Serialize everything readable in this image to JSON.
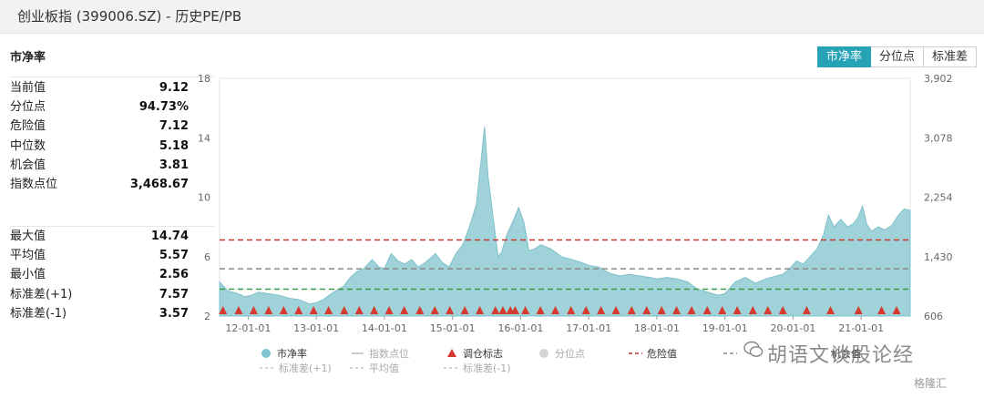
{
  "window": {
    "title": "创业板指 (399006.SZ) - 历史PE/PB"
  },
  "panel_title": "市净率",
  "tabs": [
    {
      "label": "市净率",
      "active": true
    },
    {
      "label": "分位点",
      "active": false
    },
    {
      "label": "标准差",
      "active": false
    }
  ],
  "stats_current": [
    {
      "label": "当前值",
      "value": "9.12"
    },
    {
      "label": "分位点",
      "value": "94.73%"
    },
    {
      "label": "危险值",
      "value": "7.12"
    },
    {
      "label": "中位数",
      "value": "5.18"
    },
    {
      "label": "机会值",
      "value": "3.81"
    },
    {
      "label": "指数点位",
      "value": "3,468.67"
    }
  ],
  "stats_history": [
    {
      "label": "最大值",
      "value": "14.74"
    },
    {
      "label": "平均值",
      "value": "5.57"
    },
    {
      "label": "最小值",
      "value": "2.56"
    },
    {
      "label": "标准差(+1)",
      "value": "7.57"
    },
    {
      "label": "标准差(-1)",
      "value": "3.57"
    }
  ],
  "watermark": "胡语文谈股论经",
  "source_badge": "格隆汇",
  "colors": {
    "area": "#9fd2d9",
    "area_stroke": "#7fc0c9",
    "danger": "#c0392b",
    "median": "#888888",
    "opportunity": "#3b9a4c",
    "marker": "#d63a2f",
    "accent": "#27a3b6"
  },
  "chart_data": {
    "type": "area",
    "y_left": {
      "ticks": [
        "2",
        "6",
        "10",
        "14",
        "18"
      ],
      "range": [
        2,
        18
      ]
    },
    "y_right": {
      "ticks": [
        "606",
        "1,430",
        "2,254",
        "3,078",
        "3,902"
      ],
      "range": [
        606,
        3902
      ]
    },
    "x_ticks": [
      "12-01-01",
      "13-01-01",
      "14-01-01",
      "15-01-01",
      "16-01-01",
      "17-01-01",
      "18-01-01",
      "19-01-01",
      "20-01-01",
      "21-01-01"
    ],
    "x_range": [
      2011.58,
      2021.72
    ],
    "series": [
      {
        "name": "市净率",
        "points": [
          [
            2011.58,
            4.3
          ],
          [
            2011.7,
            3.7
          ],
          [
            2011.85,
            3.5
          ],
          [
            2011.95,
            3.3
          ],
          [
            2012.05,
            3.4
          ],
          [
            2012.15,
            3.6
          ],
          [
            2012.3,
            3.5
          ],
          [
            2012.45,
            3.4
          ],
          [
            2012.6,
            3.2
          ],
          [
            2012.75,
            3.1
          ],
          [
            2012.9,
            2.8
          ],
          [
            2013.0,
            2.9
          ],
          [
            2013.1,
            3.1
          ],
          [
            2013.25,
            3.6
          ],
          [
            2013.4,
            4.0
          ],
          [
            2013.5,
            4.6
          ],
          [
            2013.6,
            5.0
          ],
          [
            2013.7,
            5.2
          ],
          [
            2013.82,
            5.8
          ],
          [
            2013.92,
            5.3
          ],
          [
            2014.0,
            5.2
          ],
          [
            2014.1,
            6.2
          ],
          [
            2014.2,
            5.7
          ],
          [
            2014.3,
            5.5
          ],
          [
            2014.4,
            5.8
          ],
          [
            2014.5,
            5.3
          ],
          [
            2014.6,
            5.6
          ],
          [
            2014.75,
            6.2
          ],
          [
            2014.85,
            5.6
          ],
          [
            2014.95,
            5.3
          ],
          [
            2015.05,
            6.2
          ],
          [
            2015.15,
            6.8
          ],
          [
            2015.25,
            8.0
          ],
          [
            2015.35,
            9.5
          ],
          [
            2015.42,
            12.5
          ],
          [
            2015.47,
            14.74
          ],
          [
            2015.52,
            11.5
          ],
          [
            2015.6,
            8.5
          ],
          [
            2015.67,
            6.0
          ],
          [
            2015.72,
            6.3
          ],
          [
            2015.8,
            7.5
          ],
          [
            2015.9,
            8.5
          ],
          [
            2015.97,
            9.3
          ],
          [
            2016.05,
            8.3
          ],
          [
            2016.12,
            6.4
          ],
          [
            2016.2,
            6.5
          ],
          [
            2016.3,
            6.8
          ],
          [
            2016.45,
            6.5
          ],
          [
            2016.6,
            6.0
          ],
          [
            2016.75,
            5.8
          ],
          [
            2016.9,
            5.6
          ],
          [
            2017.0,
            5.4
          ],
          [
            2017.15,
            5.3
          ],
          [
            2017.3,
            4.9
          ],
          [
            2017.45,
            4.7
          ],
          [
            2017.6,
            4.8
          ],
          [
            2017.75,
            4.7
          ],
          [
            2017.9,
            4.6
          ],
          [
            2018.0,
            4.5
          ],
          [
            2018.15,
            4.6
          ],
          [
            2018.3,
            4.5
          ],
          [
            2018.45,
            4.3
          ],
          [
            2018.6,
            3.8
          ],
          [
            2018.75,
            3.6
          ],
          [
            2018.9,
            3.4
          ],
          [
            2019.0,
            3.5
          ],
          [
            2019.15,
            4.3
          ],
          [
            2019.3,
            4.6
          ],
          [
            2019.45,
            4.2
          ],
          [
            2019.6,
            4.5
          ],
          [
            2019.75,
            4.7
          ],
          [
            2019.85,
            4.8
          ],
          [
            2019.95,
            5.2
          ],
          [
            2020.05,
            5.7
          ],
          [
            2020.15,
            5.5
          ],
          [
            2020.25,
            6.0
          ],
          [
            2020.35,
            6.5
          ],
          [
            2020.45,
            7.5
          ],
          [
            2020.52,
            8.8
          ],
          [
            2020.6,
            8.0
          ],
          [
            2020.7,
            8.5
          ],
          [
            2020.8,
            8.0
          ],
          [
            2020.88,
            8.2
          ],
          [
            2020.95,
            8.6
          ],
          [
            2021.02,
            9.4
          ],
          [
            2021.08,
            8.2
          ],
          [
            2021.15,
            7.7
          ],
          [
            2021.25,
            8.0
          ],
          [
            2021.35,
            7.8
          ],
          [
            2021.45,
            8.1
          ],
          [
            2021.55,
            8.8
          ],
          [
            2021.63,
            9.2
          ],
          [
            2021.72,
            9.12
          ]
        ]
      },
      {
        "name": "指数点位"
      },
      {
        "name": "调仓标志"
      },
      {
        "name": "分位点"
      },
      {
        "name": "危险值",
        "value": 7.12
      },
      {
        "name": "中位数",
        "value": 5.18
      },
      {
        "name": "机会值",
        "value": 3.81
      },
      {
        "name": "标准差(+1)",
        "value": 7.57
      },
      {
        "name": "平均值",
        "value": 5.57
      },
      {
        "name": "标准差(-1)",
        "value": 3.57
      }
    ],
    "markers_x": [
      2011.63,
      2011.86,
      2012.08,
      2012.3,
      2012.52,
      2012.74,
      2012.96,
      2013.18,
      2013.41,
      2013.63,
      2013.85,
      2014.07,
      2014.29,
      2014.52,
      2014.74,
      2014.96,
      2015.18,
      2015.4,
      2015.63,
      2015.74,
      2015.85,
      2015.92,
      2016.07,
      2016.29,
      2016.51,
      2016.74,
      2016.96,
      2017.18,
      2017.4,
      2017.63,
      2017.85,
      2018.07,
      2018.29,
      2018.51,
      2018.74,
      2018.96,
      2019.18,
      2019.41,
      2019.63,
      2019.85,
      2020.2,
      2020.55,
      2020.96,
      2021.3,
      2021.52
    ],
    "legend": [
      "市净率",
      "指数点位",
      "调仓标志",
      "分位点",
      "危险值",
      "机会值",
      "标准差(+1)",
      "平均值",
      "标准差(-1)"
    ]
  }
}
